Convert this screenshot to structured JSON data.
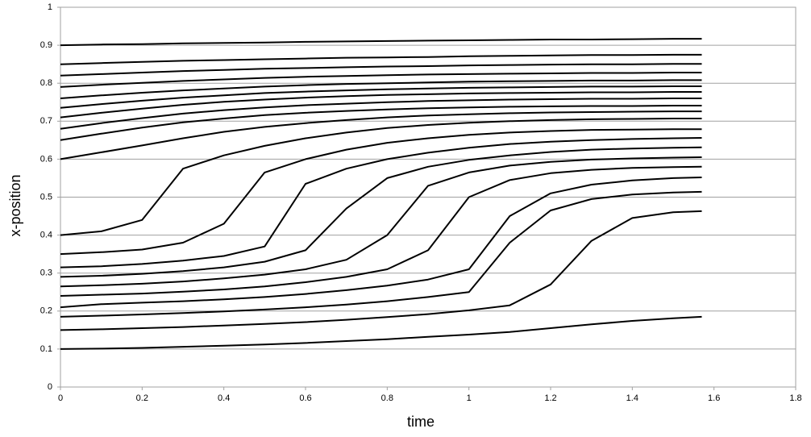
{
  "chart_data": {
    "type": "line",
    "xlabel": "time",
    "ylabel": "x-position",
    "color": "#000000",
    "grid": true,
    "xlim": [
      0,
      1.8
    ],
    "xticks": [
      0,
      0.2,
      0.4,
      0.6,
      0.8,
      1,
      1.2,
      1.4,
      1.6,
      1.8
    ],
    "ylim": [
      0,
      1
    ],
    "yticks": [
      0,
      0.1,
      0.2,
      0.3,
      0.4,
      0.5,
      0.6,
      0.7,
      0.8,
      0.9,
      1
    ],
    "x": [
      0,
      0.1,
      0.2,
      0.3,
      0.4,
      0.5,
      0.6,
      0.7,
      0.8,
      0.9,
      1.0,
      1.1,
      1.2,
      1.3,
      1.4,
      1.5,
      1.57
    ],
    "series": [
      {
        "values": [
          0.9,
          0.902,
          0.903,
          0.905,
          0.906,
          0.907,
          0.909,
          0.91,
          0.911,
          0.912,
          0.913,
          0.914,
          0.915,
          0.915,
          0.916,
          0.917,
          0.917
        ]
      },
      {
        "values": [
          0.85,
          0.853,
          0.856,
          0.859,
          0.861,
          0.863,
          0.865,
          0.867,
          0.868,
          0.869,
          0.871,
          0.872,
          0.873,
          0.874,
          0.874,
          0.875,
          0.875
        ]
      },
      {
        "values": [
          0.82,
          0.824,
          0.828,
          0.832,
          0.835,
          0.838,
          0.84,
          0.842,
          0.844,
          0.845,
          0.847,
          0.848,
          0.849,
          0.85,
          0.85,
          0.851,
          0.851
        ]
      },
      {
        "values": [
          0.79,
          0.796,
          0.801,
          0.806,
          0.81,
          0.814,
          0.817,
          0.819,
          0.821,
          0.823,
          0.824,
          0.825,
          0.826,
          0.827,
          0.827,
          0.828,
          0.828
        ]
      },
      {
        "values": [
          0.76,
          0.768,
          0.775,
          0.781,
          0.786,
          0.791,
          0.795,
          0.798,
          0.8,
          0.802,
          0.804,
          0.805,
          0.806,
          0.807,
          0.807,
          0.808,
          0.808
        ]
      },
      {
        "values": [
          0.735,
          0.745,
          0.754,
          0.762,
          0.768,
          0.774,
          0.778,
          0.781,
          0.784,
          0.786,
          0.788,
          0.789,
          0.79,
          0.791,
          0.791,
          0.792,
          0.792
        ]
      },
      {
        "values": [
          0.71,
          0.722,
          0.733,
          0.743,
          0.751,
          0.757,
          0.762,
          0.766,
          0.769,
          0.771,
          0.773,
          0.774,
          0.775,
          0.776,
          0.776,
          0.777,
          0.777
        ]
      },
      {
        "values": [
          0.68,
          0.695,
          0.708,
          0.72,
          0.729,
          0.736,
          0.742,
          0.746,
          0.75,
          0.753,
          0.755,
          0.757,
          0.758,
          0.759,
          0.759,
          0.76,
          0.76
        ]
      },
      {
        "values": [
          0.65,
          0.667,
          0.683,
          0.697,
          0.707,
          0.716,
          0.722,
          0.727,
          0.731,
          0.734,
          0.736,
          0.738,
          0.739,
          0.74,
          0.74,
          0.741,
          0.741
        ]
      },
      {
        "values": [
          0.6,
          0.618,
          0.636,
          0.655,
          0.672,
          0.685,
          0.695,
          0.703,
          0.71,
          0.715,
          0.718,
          0.721,
          0.723,
          0.724,
          0.725,
          0.726,
          0.726
        ]
      },
      {
        "values": [
          0.4,
          0.41,
          0.44,
          0.575,
          0.61,
          0.635,
          0.655,
          0.67,
          0.682,
          0.69,
          0.696,
          0.7,
          0.703,
          0.705,
          0.706,
          0.707,
          0.707
        ]
      },
      {
        "values": [
          0.35,
          0.355,
          0.362,
          0.38,
          0.43,
          0.565,
          0.6,
          0.625,
          0.643,
          0.655,
          0.664,
          0.67,
          0.674,
          0.677,
          0.678,
          0.679,
          0.679
        ]
      },
      {
        "values": [
          0.315,
          0.318,
          0.324,
          0.333,
          0.345,
          0.37,
          0.535,
          0.575,
          0.6,
          0.617,
          0.63,
          0.64,
          0.646,
          0.65,
          0.653,
          0.655,
          0.656
        ]
      },
      {
        "values": [
          0.29,
          0.293,
          0.298,
          0.305,
          0.315,
          0.33,
          0.36,
          0.47,
          0.55,
          0.58,
          0.598,
          0.61,
          0.619,
          0.625,
          0.628,
          0.63,
          0.631
        ]
      },
      {
        "values": [
          0.265,
          0.268,
          0.272,
          0.278,
          0.286,
          0.296,
          0.31,
          0.335,
          0.4,
          0.53,
          0.565,
          0.583,
          0.593,
          0.599,
          0.602,
          0.604,
          0.605
        ]
      },
      {
        "values": [
          0.24,
          0.243,
          0.246,
          0.251,
          0.257,
          0.265,
          0.276,
          0.29,
          0.31,
          0.36,
          0.5,
          0.545,
          0.563,
          0.572,
          0.577,
          0.579,
          0.58
        ]
      },
      {
        "values": [
          0.21,
          0.218,
          0.222,
          0.226,
          0.231,
          0.237,
          0.245,
          0.255,
          0.267,
          0.283,
          0.31,
          0.45,
          0.51,
          0.533,
          0.544,
          0.55,
          0.552
        ]
      },
      {
        "values": [
          0.185,
          0.188,
          0.191,
          0.195,
          0.199,
          0.204,
          0.21,
          0.217,
          0.226,
          0.237,
          0.25,
          0.38,
          0.465,
          0.495,
          0.507,
          0.512,
          0.514
        ]
      },
      {
        "values": [
          0.15,
          0.152,
          0.155,
          0.158,
          0.162,
          0.166,
          0.171,
          0.177,
          0.184,
          0.192,
          0.202,
          0.215,
          0.27,
          0.385,
          0.445,
          0.46,
          0.463
        ]
      },
      {
        "values": [
          0.1,
          0.101,
          0.103,
          0.106,
          0.109,
          0.112,
          0.116,
          0.121,
          0.126,
          0.132,
          0.138,
          0.145,
          0.155,
          0.165,
          0.174,
          0.181,
          0.185
        ]
      }
    ]
  }
}
